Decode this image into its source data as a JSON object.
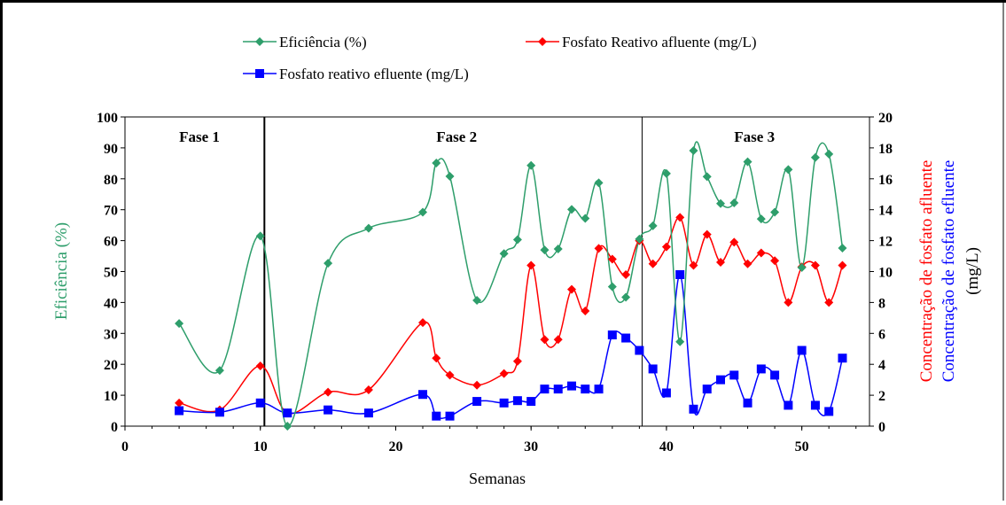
{
  "chart_data": {
    "type": "line",
    "xlabel": "Semanas",
    "ylabel_left": "Eficiência (%)",
    "ylabel_right_1": "Concentração de fosfato  afluente",
    "ylabel_right_2": "Concentração de fosfato  efluente",
    "ylabel_right_3": "(mg/L)",
    "xlim": [
      0,
      55
    ],
    "ylim_left": [
      0,
      100
    ],
    "ylim_right": [
      0,
      20
    ],
    "x_ticks": [
      0,
      10,
      20,
      30,
      40,
      50
    ],
    "y_left_ticks": [
      0,
      10,
      20,
      30,
      40,
      50,
      60,
      70,
      80,
      90,
      100
    ],
    "y_right_ticks": [
      0,
      2,
      4,
      6,
      8,
      10,
      12,
      14,
      16,
      18,
      20
    ],
    "phase_dividers": [
      10.3,
      38.2
    ],
    "phases": [
      {
        "label": "Fase 1",
        "x": 5.5
      },
      {
        "label": "Fase 2",
        "x": 24.5
      },
      {
        "label": "Fase 3",
        "x": 46.5
      }
    ],
    "grid": false,
    "legend_position": "top",
    "series": [
      {
        "name": "Eficiência (%)",
        "axis": "left",
        "color": "#2e9e6b",
        "marker": "diamond",
        "x": [
          4,
          7,
          10,
          12,
          15,
          18,
          22,
          23,
          24,
          26,
          28,
          29,
          30,
          31,
          32,
          33,
          34,
          35,
          36,
          37,
          38,
          39,
          40,
          41,
          42,
          43,
          44,
          45,
          46,
          47,
          48,
          49,
          50,
          51,
          52,
          53
        ],
        "values": [
          33.2,
          18,
          61.5,
          0,
          52.7,
          64,
          69.2,
          85.1,
          80.8,
          40.7,
          55.8,
          60.3,
          84.3,
          57,
          57.3,
          70.1,
          67.2,
          78.7,
          45.1,
          41.7,
          60.5,
          64.8,
          81.7,
          27.3,
          89.1,
          80.7,
          72,
          72.2,
          85.5,
          67,
          69.2,
          83,
          51.3,
          86.9,
          88,
          57.6
        ]
      },
      {
        "name": "Fosfato Reativo afluente (mg/L)",
        "axis": "right",
        "color": "#ff0000",
        "marker": "diamond",
        "x": [
          4,
          7,
          10,
          12,
          15,
          18,
          22,
          23,
          24,
          26,
          28,
          29,
          30,
          31,
          32,
          33,
          34,
          35,
          36,
          37,
          38,
          39,
          40,
          41,
          42,
          43,
          44,
          45,
          46,
          47,
          48,
          49,
          50,
          51,
          52,
          53
        ],
        "values": [
          1.5,
          1.05,
          3.9,
          0.85,
          2.2,
          2.35,
          6.7,
          4.4,
          3.3,
          2.65,
          3.4,
          4.2,
          10.4,
          5.6,
          5.6,
          8.85,
          7.45,
          11.5,
          10.8,
          9.8,
          12,
          10.5,
          11.6,
          13.5,
          10.4,
          12.4,
          10.6,
          11.9,
          10.5,
          11.2,
          10.7,
          8,
          10.3,
          10.4,
          8,
          10.4
        ]
      },
      {
        "name": "Fosfato reativo efluente (mg/L)",
        "axis": "right",
        "color": "#0000ff",
        "marker": "square",
        "x": [
          4,
          7,
          10,
          12,
          15,
          18,
          22,
          23,
          24,
          26,
          28,
          29,
          30,
          31,
          32,
          33,
          34,
          35,
          36,
          37,
          38,
          39,
          40,
          41,
          42,
          43,
          44,
          45,
          46,
          47,
          48,
          49,
          50,
          51,
          52,
          53
        ],
        "values": [
          1,
          0.9,
          1.5,
          0.85,
          1.05,
          0.85,
          2.05,
          0.65,
          0.65,
          1.6,
          1.5,
          1.65,
          1.6,
          2.4,
          2.4,
          2.6,
          2.4,
          2.4,
          5.9,
          5.7,
          4.9,
          3.7,
          2.15,
          9.8,
          1.1,
          2.4,
          3,
          3.3,
          1.5,
          3.7,
          3.3,
          1.35,
          4.9,
          1.35,
          0.95,
          4.4
        ]
      }
    ]
  }
}
